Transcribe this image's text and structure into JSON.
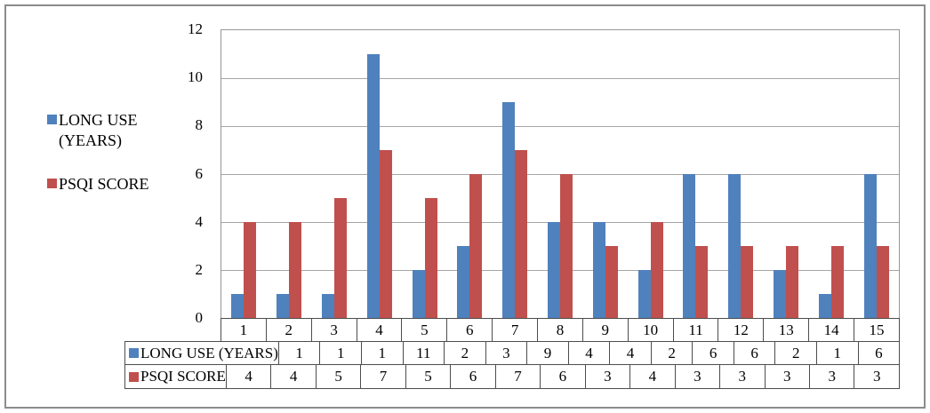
{
  "chart_data": {
    "type": "bar",
    "title": "",
    "xlabel": "",
    "ylabel": "",
    "categories": [
      "1",
      "2",
      "3",
      "4",
      "5",
      "6",
      "7",
      "8",
      "9",
      "10",
      "11",
      "12",
      "13",
      "14",
      "15"
    ],
    "series": [
      {
        "name": "LONG USE (YEARS)",
        "color": "#4F81BD",
        "values": [
          1,
          1,
          1,
          11,
          2,
          3,
          9,
          4,
          4,
          2,
          6,
          6,
          2,
          1,
          6
        ]
      },
      {
        "name": "PSQI SCORE",
        "color": "#C0504D",
        "values": [
          4,
          4,
          5,
          7,
          5,
          6,
          7,
          6,
          3,
          4,
          3,
          3,
          3,
          3,
          3
        ]
      }
    ],
    "ylim": [
      0,
      12
    ],
    "yticks": [
      0,
      2,
      4,
      6,
      8,
      10,
      12
    ],
    "grid": true,
    "legend_position": "left",
    "data_table_shown": true
  },
  "legend": {
    "items": [
      {
        "label_line1": "LONG USE",
        "label_line2": "(YEARS)",
        "color": "#4F81BD"
      },
      {
        "label_line1": "PSQI SCORE",
        "label_line2": "",
        "color": "#C0504D"
      }
    ]
  },
  "table": {
    "row_headers": [
      "LONG USE (YEARS)",
      "PSQI SCORE"
    ]
  },
  "colors": {
    "series_long_use": "#4F81BD",
    "series_psqi": "#C0504D",
    "gridline": "#A6A6A6",
    "table_border": "#4D4D4D",
    "frame_border": "#8C8C8C"
  }
}
